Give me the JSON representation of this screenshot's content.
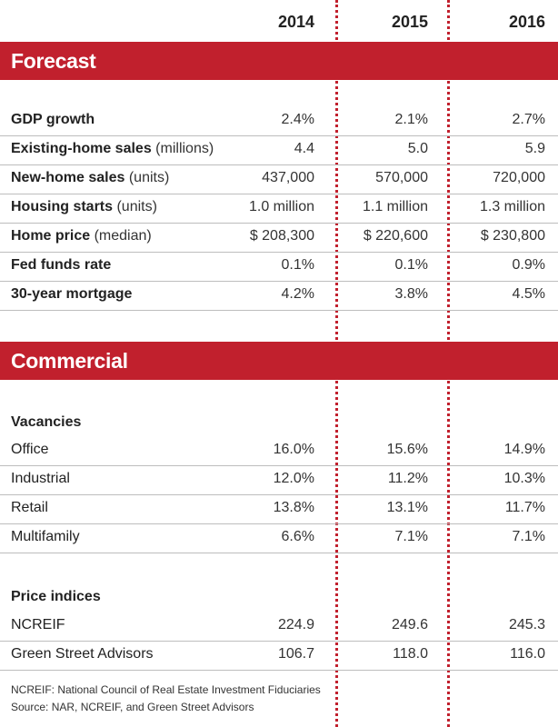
{
  "years": [
    "2014",
    "2015",
    "2016"
  ],
  "forecast": {
    "title": "Forecast",
    "rows": [
      {
        "label": "GDP growth",
        "unit": "",
        "values": [
          "2.4%",
          "2.1%",
          "2.7%"
        ]
      },
      {
        "label": "Existing-home sales",
        "unit": "(millions)",
        "values": [
          "4.4",
          "5.0",
          "5.9"
        ]
      },
      {
        "label": "New-home sales",
        "unit": "(units)",
        "values": [
          "437,000",
          "570,000",
          "720,000"
        ]
      },
      {
        "label": "Housing starts",
        "unit": "(units)",
        "values": [
          "1.0 million",
          "1.1 million",
          "1.3 million"
        ]
      },
      {
        "label": "Home price",
        "unit": "(median)",
        "values": [
          "$ 208,300",
          "$ 220,600",
          "$ 230,800"
        ]
      },
      {
        "label": "Fed funds rate",
        "unit": "",
        "values": [
          "0.1%",
          "0.1%",
          "0.9%"
        ]
      },
      {
        "label": "30-year mortgage",
        "unit": "",
        "values": [
          "4.2%",
          "3.8%",
          "4.5%"
        ]
      }
    ]
  },
  "commercial": {
    "title": "Commercial",
    "vacancies": {
      "heading": "Vacancies",
      "rows": [
        {
          "label": "Office",
          "values": [
            "16.0%",
            "15.6%",
            "14.9%"
          ]
        },
        {
          "label": "Industrial",
          "values": [
            "12.0%",
            "11.2%",
            "10.3%"
          ]
        },
        {
          "label": "Retail",
          "values": [
            "13.8%",
            "13.1%",
            "11.7%"
          ]
        },
        {
          "label": "Multifamily",
          "values": [
            "6.6%",
            "7.1%",
            "7.1%"
          ]
        }
      ]
    },
    "price_indices": {
      "heading": "Price indices",
      "rows": [
        {
          "label": "NCREIF",
          "values": [
            "224.9",
            "249.6",
            "245.3"
          ]
        },
        {
          "label": "Green Street Advisors",
          "values": [
            "106.7",
            "118.0",
            "116.0"
          ]
        }
      ]
    }
  },
  "footnotes": [
    "NCREIF: National Council of Real Estate Investment Fiduciaries",
    "Source: NAR, NCREIF, and Green Street Advisors"
  ],
  "colors": {
    "accent": "#c1202d",
    "rule": "#bdbdbd",
    "text": "#222222"
  }
}
